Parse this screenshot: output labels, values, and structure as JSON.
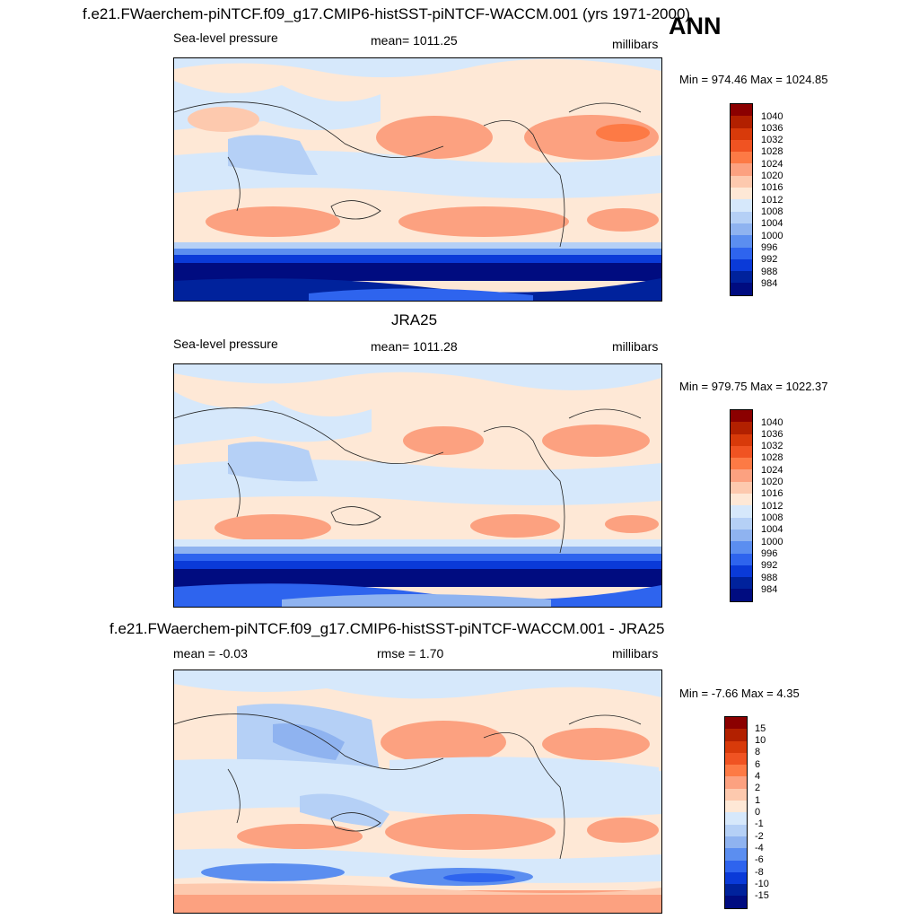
{
  "panels": [
    {
      "title": "f.e21.FWaerchem-piNTCF.f09_g17.CMIP6-histSST-piNTCF-WACCM.001 (yrs 1971-2000)",
      "left": "Sea-level pressure",
      "center": "mean= 1011.25",
      "right": "millibars",
      "minmax": "Min = 974.46 Max = 1024.85",
      "labels": [
        "1040",
        "1036",
        "1032",
        "1028",
        "1024",
        "1020",
        "1016",
        "1012",
        "1008",
        "1004",
        "1000",
        "996",
        "992",
        "988",
        "984"
      ]
    },
    {
      "title": "JRA25",
      "left": "Sea-level pressure",
      "center": "mean= 1011.28",
      "right": "millibars",
      "minmax": "Min = 979.75 Max = 1022.37",
      "labels": [
        "1040",
        "1036",
        "1032",
        "1028",
        "1024",
        "1020",
        "1016",
        "1012",
        "1008",
        "1004",
        "1000",
        "996",
        "992",
        "988",
        "984"
      ]
    },
    {
      "title": "f.e21.FWaerchem-piNTCF.f09_g17.CMIP6-histSST-piNTCF-WACCM.001 - JRA25",
      "left": "mean =  -0.03",
      "center": "rmse =   1.70",
      "right": "millibars",
      "minmax": "Min =  -7.66 Max =   4.35",
      "labels": [
        "15",
        "10",
        "8",
        "6",
        "4",
        "2",
        "1",
        "0",
        "-1",
        "-2",
        "-4",
        "-6",
        "-8",
        "-10",
        "-15"
      ]
    }
  ],
  "season": "ANN",
  "colors": [
    "#8b0000",
    "#b22000",
    "#d83a0a",
    "#f05322",
    "#fd7a45",
    "#fca180",
    "#fdc9ae",
    "#fee8d6",
    "#d6e8fb",
    "#b5d0f6",
    "#8fb3f0",
    "#5b8ef0",
    "#2e64ee",
    "#0a3ad8",
    "#00229c",
    "#000c80"
  ]
}
